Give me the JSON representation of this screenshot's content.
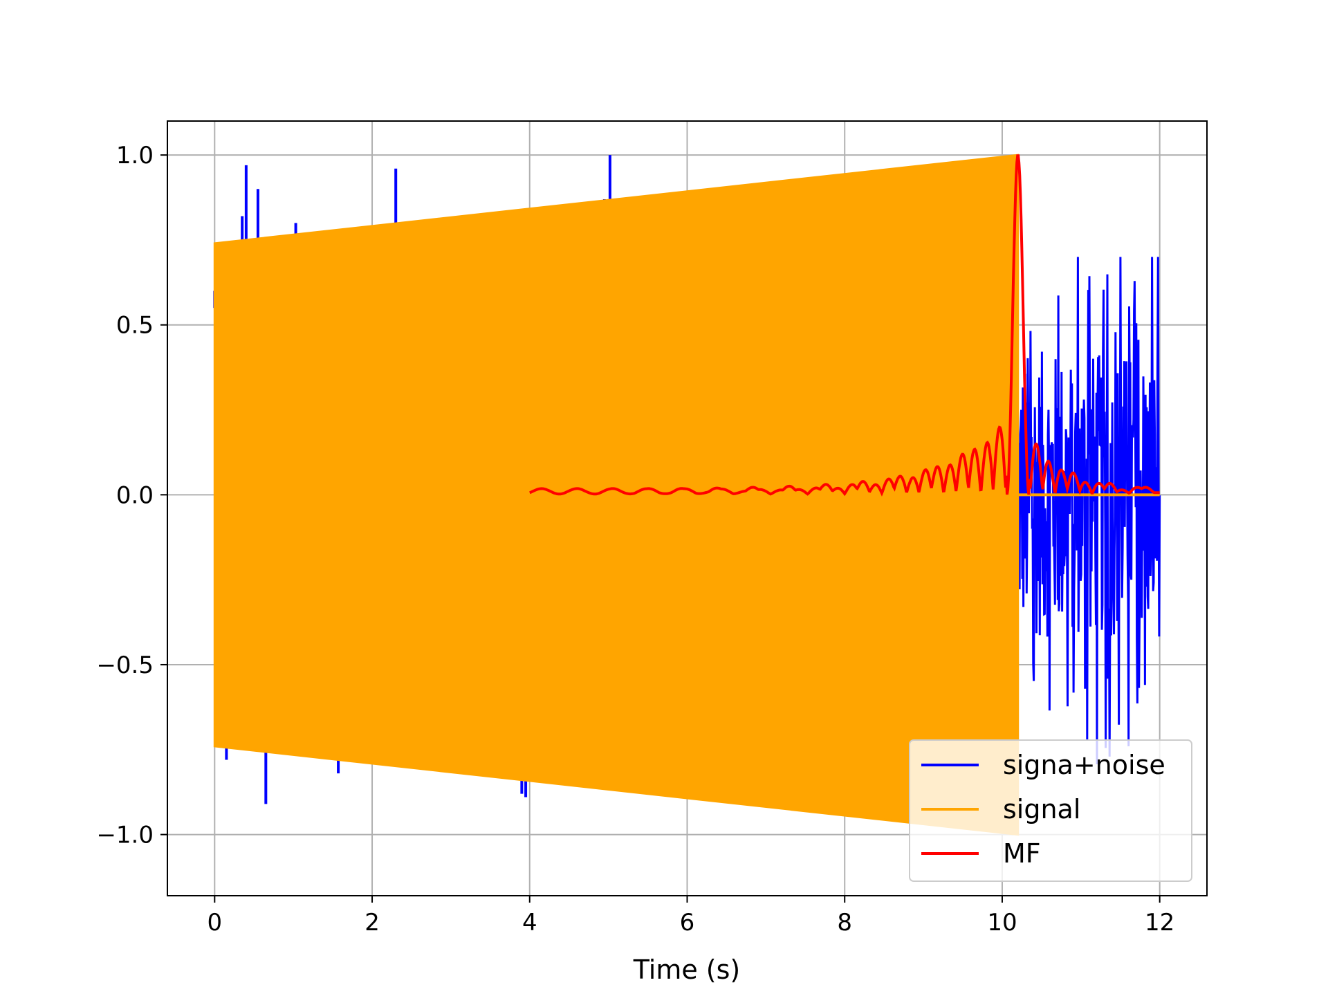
{
  "chart_data": {
    "type": "line",
    "title": "",
    "xlabel": "Time (s)",
    "ylabel": "",
    "xlim": [
      -0.6,
      12.6
    ],
    "ylim": [
      -1.18,
      1.1
    ],
    "xticks": [
      0,
      2,
      4,
      6,
      8,
      10,
      12
    ],
    "xtick_labels": [
      "0",
      "2",
      "4",
      "6",
      "8",
      "10",
      "12"
    ],
    "yticks": [
      -1.0,
      -0.5,
      0.0,
      0.5,
      1.0
    ],
    "ytick_labels": [
      "−1.0",
      "−0.5",
      "0.0",
      "0.5",
      "1.0"
    ],
    "grid": true,
    "legend_position": "lower-right",
    "series": [
      {
        "name": "signa+noise",
        "color": "#0000ff",
        "description": "noisy signal; visible spikes",
        "spikes_x": [
          0.0,
          0.15,
          0.35,
          0.4,
          0.55,
          0.65,
          1.03,
          1.57,
          2.3,
          2.35,
          2.55,
          3.9,
          3.95,
          4.95,
          5.02,
          5.4,
          5.9
        ],
        "spikes_y": [
          0.55,
          -0.78,
          0.82,
          0.97,
          0.9,
          -0.91,
          0.8,
          -0.82,
          0.96,
          0.79,
          0.79,
          -0.88,
          -0.89,
          0.87,
          1.0,
          0.84,
          0.86
        ],
        "tail_range": [
          10.2,
          12.0
        ],
        "tail_amplitude": [
          -0.88,
          0.7
        ]
      },
      {
        "name": "signal",
        "color": "#ffa500",
        "description": "chirp with envelope growing from 0.74 to 1.0",
        "x_start": 0.0,
        "x_end": 10.2,
        "envelope_start": 0.74,
        "envelope_end": 1.0,
        "after_value": 0.0,
        "after_end": 12.0
      },
      {
        "name": "MF",
        "color": "#ff0000",
        "description": "matched filter output",
        "x_start": 4.0,
        "x_end": 12.0,
        "peak_x": 10.2,
        "peak_y": 1.0,
        "baseline": 0.01
      }
    ]
  }
}
